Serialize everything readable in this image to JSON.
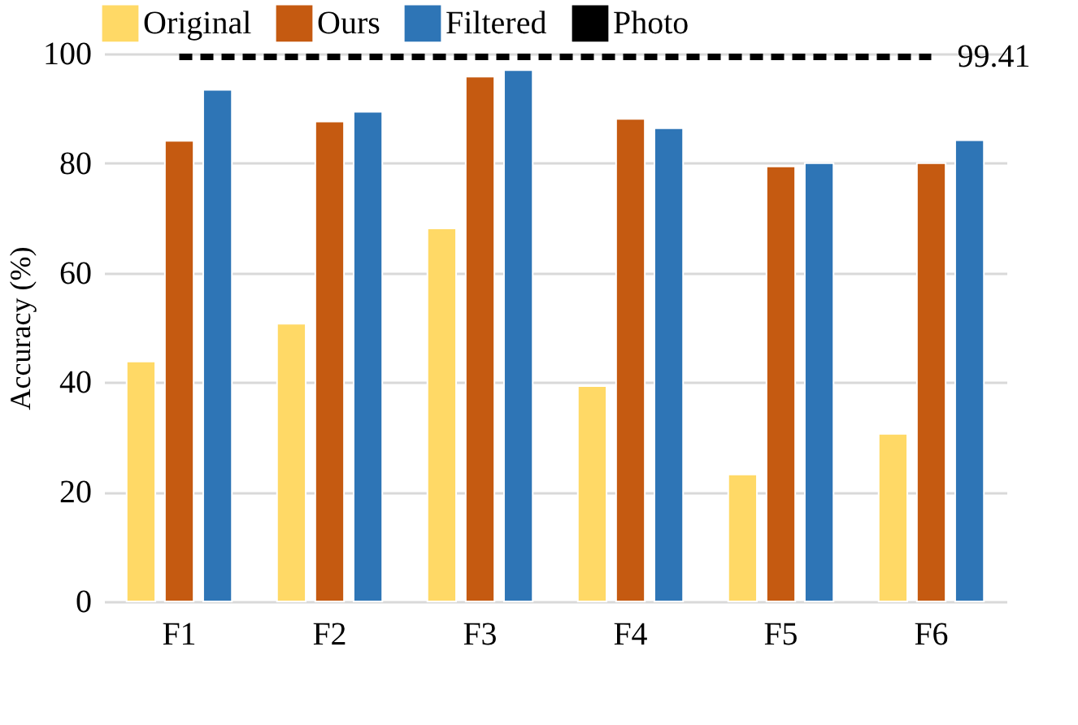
{
  "chart_data": {
    "type": "bar",
    "ylabel": "Accuracy (%)",
    "categories": [
      "F1",
      "F2",
      "F3",
      "F4",
      "F5",
      "F6"
    ],
    "series": [
      {
        "name": "Original",
        "color": "#ffd966",
        "values": [
          43.8,
          50.7,
          68.1,
          39.3,
          23.2,
          30.6
        ]
      },
      {
        "name": "Ours",
        "color": "#c55a11",
        "values": [
          84.1,
          87.6,
          95.8,
          88.1,
          79.4,
          80.0
        ]
      },
      {
        "name": "Filtered",
        "color": "#2e75b6",
        "values": [
          93.4,
          89.4,
          97.0,
          86.4,
          80.0,
          84.2
        ]
      },
      {
        "name": "Photo",
        "type": "line",
        "line_style": "dashed",
        "marker": "none",
        "color": "#000000",
        "values": [
          99.41,
          99.41,
          99.41,
          99.41,
          99.41,
          99.41
        ],
        "value_labels": [
          null,
          null,
          null,
          null,
          null,
          "99.41"
        ]
      }
    ],
    "ylim": [
      0,
      100
    ],
    "yticks": [
      0,
      20,
      40,
      60,
      80,
      100
    ],
    "grid": "y",
    "legend": "top"
  }
}
